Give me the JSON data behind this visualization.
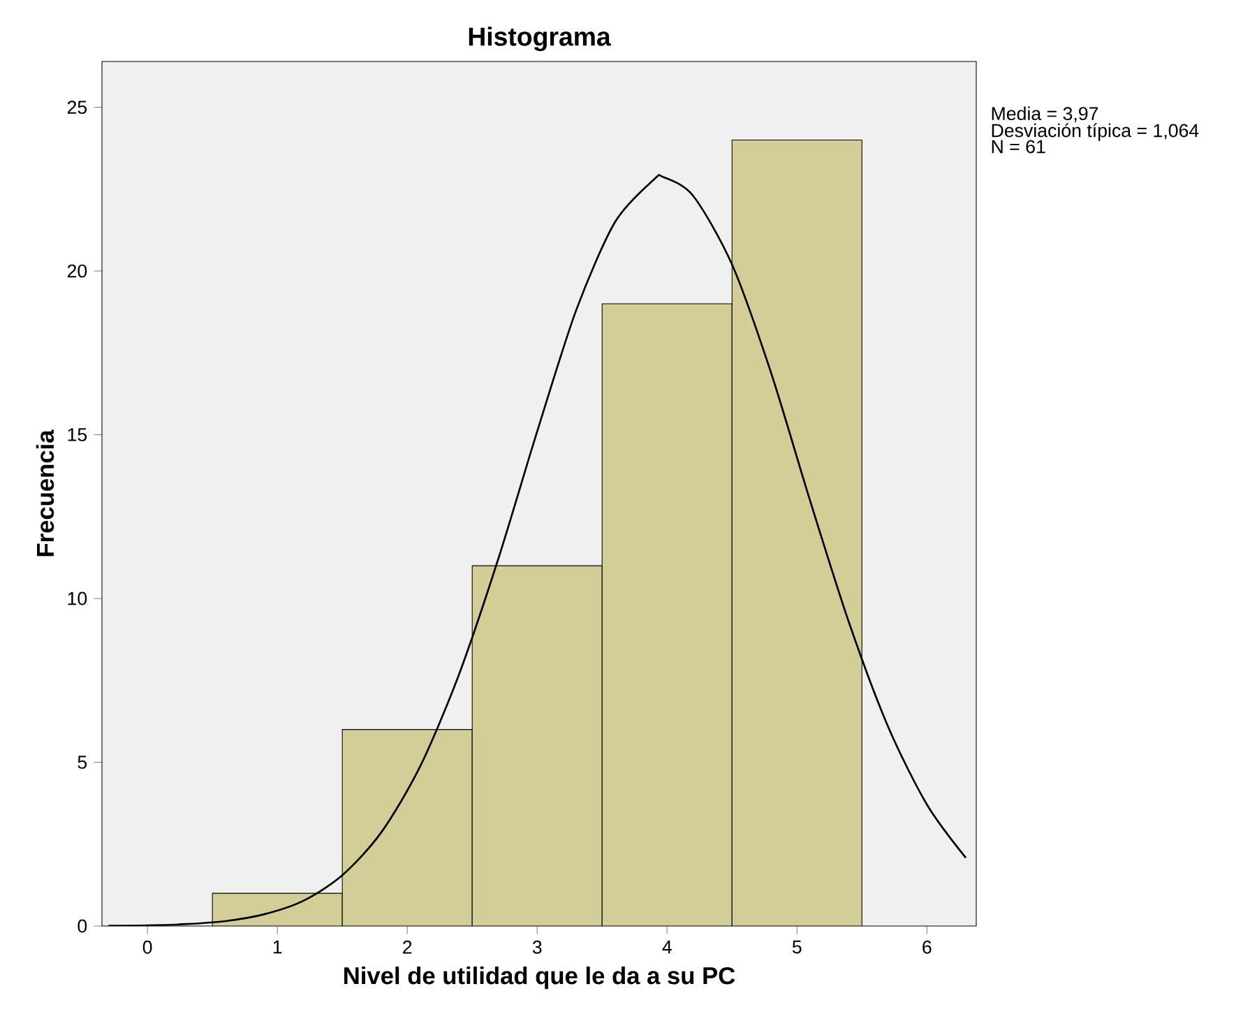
{
  "chart_data": {
    "type": "histogram",
    "title": "Histograma",
    "xlabel": "Nivel de utilidad que le da a su PC",
    "ylabel": "Frecuencia",
    "bins": [
      0.5,
      1.5,
      2.5,
      3.5,
      4.5,
      5.5
    ],
    "values": [
      1,
      6,
      11,
      19,
      24
    ],
    "color": "#d3ce98",
    "series": [
      {
        "type": "line",
        "color": "#000000",
        "x": [
          -0.3,
          0,
          0.3,
          0.6,
          0.9,
          1.2,
          1.5,
          1.8,
          2.1,
          2.4,
          2.7,
          3.0,
          3.3,
          3.6,
          3.9,
          3.97,
          4.2,
          4.5,
          4.8,
          5.1,
          5.4,
          5.7,
          6.0,
          6.3
        ],
        "values": [
          0.01,
          0.02,
          0.06,
          0.15,
          0.36,
          0.77,
          1.55,
          2.86,
          4.88,
          7.7,
          11.2,
          15.1,
          18.8,
          21.5,
          22.8,
          22.87,
          22.3,
          20.2,
          16.9,
          13.0,
          9.27,
          6.1,
          3.71,
          2.08
        ]
      }
    ],
    "xlim": [
      -0.35,
      6.38
    ],
    "ylim": [
      0,
      26.4
    ],
    "xticks": [
      0,
      1,
      2,
      3,
      4,
      5,
      6
    ],
    "yticks": [
      0,
      5,
      10,
      15,
      20,
      25
    ],
    "grid": false,
    "annotations": [
      "Media = 3,97",
      "Desviación típica = 1,064",
      "N = 61"
    ]
  }
}
